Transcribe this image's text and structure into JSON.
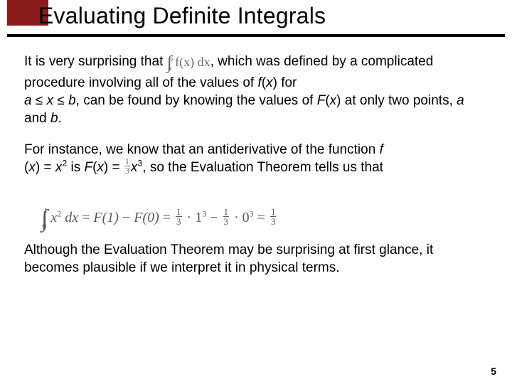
{
  "colors": {
    "accent_block": "#8b1a1a",
    "underline": "#000000",
    "text": "#000000",
    "math_gray": "#5a5a5a",
    "background": "#ffffff"
  },
  "typography": {
    "title_fontsize": 32,
    "body_fontsize": 19,
    "font_family": "Arial"
  },
  "title": "Evaluating Definite Integrals",
  "para1": {
    "t1": "It is very surprising that ",
    "integral": {
      "lower": "a",
      "upper": "b",
      "body": "f(x) dx"
    },
    "t2": ", which was defined by a complicated procedure involving all of the values of ",
    "fx": "f",
    "t3": "(",
    "x1": "x",
    "t4": ") for",
    "line3a": "a",
    "le1": " ≤ ",
    "x2": "x",
    "le2": " ≤ ",
    "b": "b",
    "t5": ", can be found by knowing the values of ",
    "Fx": "F",
    "t6": "(",
    "x3": "x",
    "t7": ") at only two points, ",
    "a2": "a",
    "t8": " and ",
    "b2": "b",
    "t9": "."
  },
  "para2": {
    "t1": "For instance, we know that an antiderivative of the function  ",
    "f": "f",
    "t2": "(",
    "x": "x",
    "t3": ") = ",
    "x2": "x",
    "sup2": "2",
    "t4": " is ",
    "F": "F",
    "t5": "(",
    "x3": "x",
    "t6": ") = ",
    "frac": {
      "num": "1",
      "den": "3"
    },
    "x4": "x",
    "sup3": "3",
    "t7": ", so the Evaluation Theorem tells us that"
  },
  "display": {
    "int_lower": "0",
    "int_upper": "1",
    "integrand_base": "x",
    "integrand_pow": "2",
    "dx": " dx",
    "eq": " = ",
    "F1": "F(1)",
    "minus": " − ",
    "F0": "F(0)",
    "frac13": {
      "num": "1",
      "den": "3"
    },
    "dot": " · ",
    "one": "1",
    "pow3a": "3",
    "zero": "0",
    "pow3b": "3"
  },
  "para3": "Although the Evaluation Theorem may be surprising at first glance, it becomes plausible if we interpret it in physical terms.",
  "page_number": "5"
}
